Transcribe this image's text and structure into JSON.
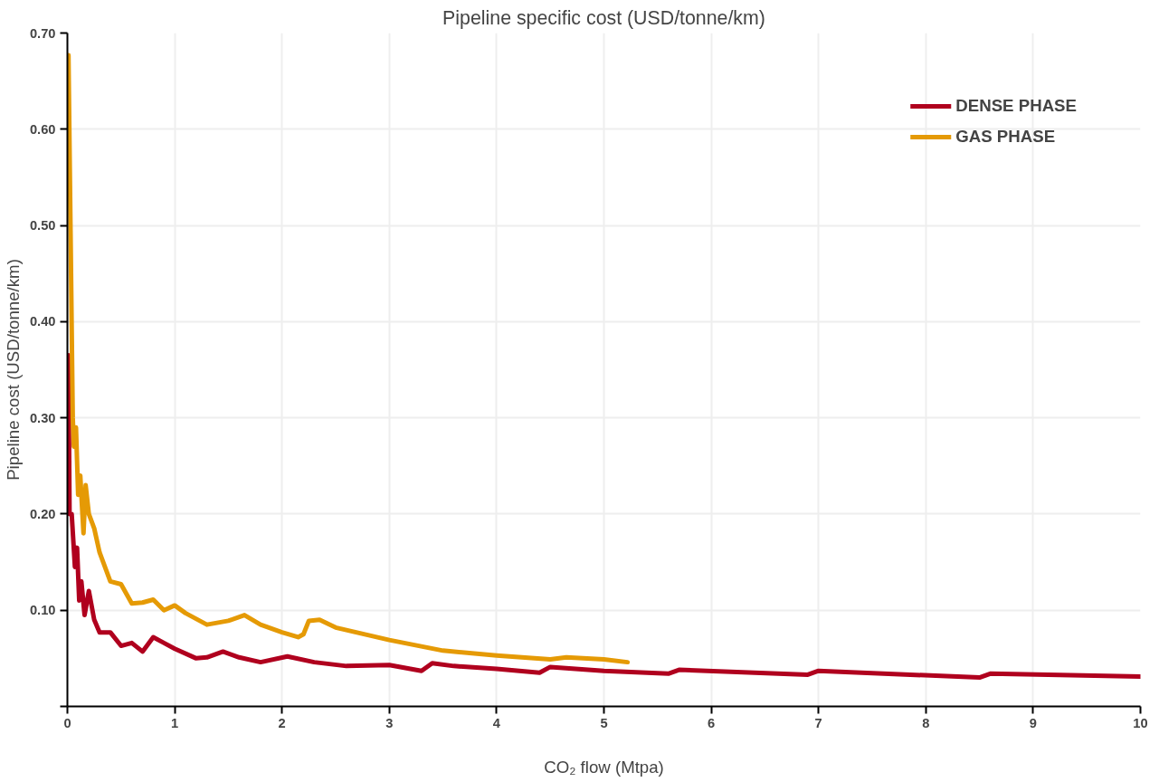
{
  "chart_data": {
    "type": "line",
    "title": "Pipeline specific cost (USD/tonne/km)",
    "xlabel": "CO₂ flow (Mtpa)",
    "ylabel": "Pipeline cost (USD/tonne/km)",
    "xlim": [
      0,
      10
    ],
    "ylim": [
      0,
      0.7
    ],
    "xticks": [
      0,
      1,
      2,
      3,
      4,
      5,
      6,
      7,
      8,
      9,
      10
    ],
    "yticks": [
      {
        "value": 0,
        "label": null
      },
      {
        "value": 0.1,
        "label": "0.10"
      },
      {
        "value": 0.2,
        "label": "0.20"
      },
      {
        "value": 0.3,
        "label": "0.30"
      },
      {
        "value": 0.4,
        "label": "0.40"
      },
      {
        "value": 0.5,
        "label": "0.50"
      },
      {
        "value": 0.6,
        "label": "0.60"
      },
      {
        "value": 0.7,
        "label": "0.70"
      }
    ],
    "grid": true,
    "legend": "top right",
    "line_style": "solid",
    "series": [
      {
        "name": "DENSE PHASE",
        "color": "#b0001e",
        "x": [
          0.01,
          0.02,
          0.04,
          0.07,
          0.09,
          0.11,
          0.13,
          0.16,
          0.2,
          0.25,
          0.3,
          0.4,
          0.5,
          0.6,
          0.7,
          0.8,
          0.9,
          1.0,
          1.2,
          1.3,
          1.45,
          1.6,
          1.8,
          2.05,
          2.3,
          2.6,
          3.0,
          3.3,
          3.4,
          3.6,
          4.0,
          4.4,
          4.5,
          5.0,
          5.6,
          5.7,
          6.9,
          7.0,
          8.5,
          8.6,
          10
        ],
        "values": [
          0.365,
          0.2,
          0.2,
          0.145,
          0.165,
          0.11,
          0.13,
          0.095,
          0.12,
          0.09,
          0.077,
          0.077,
          0.063,
          0.066,
          0.057,
          0.072,
          0.066,
          0.06,
          0.05,
          0.051,
          0.057,
          0.051,
          0.046,
          0.052,
          0.046,
          0.042,
          0.043,
          0.037,
          0.045,
          0.042,
          0.039,
          0.035,
          0.041,
          0.037,
          0.034,
          0.038,
          0.033,
          0.037,
          0.03,
          0.034,
          0.031
        ]
      },
      {
        "name": "GAS PHASE",
        "color": "#e59a05",
        "x": [
          0.01,
          0.05,
          0.06,
          0.08,
          0.1,
          0.12,
          0.15,
          0.17,
          0.2,
          0.25,
          0.3,
          0.4,
          0.5,
          0.6,
          0.7,
          0.8,
          0.9,
          1.0,
          1.1,
          1.3,
          1.5,
          1.65,
          1.8,
          2.0,
          2.15,
          2.2,
          2.25,
          2.35,
          2.5,
          3.0,
          3.5,
          4.0,
          4.5,
          4.65,
          5.0,
          5.22
        ],
        "values": [
          0.677,
          0.3,
          0.27,
          0.29,
          0.22,
          0.24,
          0.18,
          0.23,
          0.2,
          0.185,
          0.16,
          0.13,
          0.127,
          0.107,
          0.108,
          0.111,
          0.1,
          0.105,
          0.097,
          0.085,
          0.089,
          0.095,
          0.085,
          0.077,
          0.072,
          0.075,
          0.089,
          0.09,
          0.082,
          0.069,
          0.058,
          0.053,
          0.049,
          0.051,
          0.049,
          0.046
        ]
      }
    ]
  }
}
